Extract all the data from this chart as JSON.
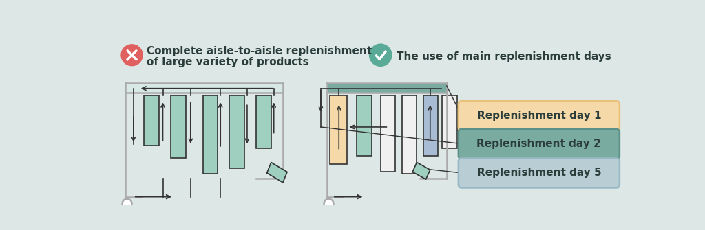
{
  "bg_color": "#dde8e6",
  "title1_line1": "Complete aisle-to-aisle replenishment",
  "title1_line2": "of large variety of products",
  "title2": "The use of main replenishment days",
  "label1": "Replenishment day 1",
  "label2": "Replenishment day 2",
  "label3": "Replenishment day 5",
  "label1_color": "#f5d9a8",
  "label2_color": "#7aaba0",
  "label3_color": "#b8cdd4",
  "label1_border": "#e8c07a",
  "label2_border": "#5a9088",
  "label3_border": "#98b8c4",
  "aisle_color_left": "#9ecfbf",
  "aisle_color_orange": "#f5d9a8",
  "aisle_color_teal": "#9ecfbf",
  "aisle_color_blue": "#a8bdd4",
  "roof_color_left": "#d8e8e4",
  "roof_color_right": "#7aaba0",
  "line_color": "#333333",
  "text_color": "#2a3d3a",
  "cross_color": "#e06060",
  "check_color": "#5aaa98",
  "wall_color": "#aaaaaa"
}
